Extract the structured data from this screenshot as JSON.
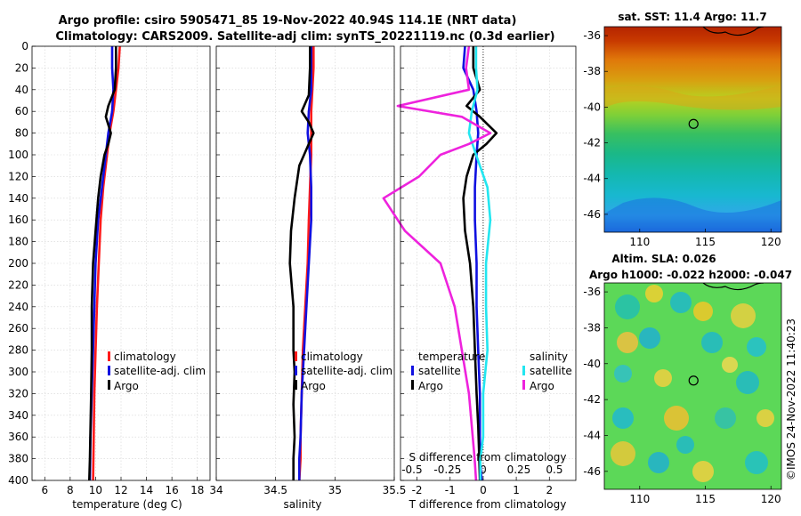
{
  "title_line1": "Argo profile: csiro 5905471_85 19-Nov-2022 40.94S 114.1E (NRT data)",
  "title_line2": "Climatology: CARS2009. Satellite-adj clim: synTS_20221119.nc (0.3d earlier)",
  "depth_ticks": [
    "0",
    "20",
    "40",
    "60",
    "80",
    "100",
    "120",
    "140",
    "160",
    "180",
    "200",
    "220",
    "240",
    "260",
    "280",
    "300",
    "320",
    "340",
    "360",
    "380",
    "400"
  ],
  "footer_text": "©IMOS 24-Nov-2022 11:40:23",
  "colors": {
    "red": "#ff1a1a",
    "blue": "#1010e0",
    "black": "#000000",
    "cyan": "#22e6f0",
    "magenta": "#ee22dd"
  },
  "chart_data": [
    {
      "type": "line",
      "panel": "temperature",
      "xlabel": "temperature (deg C)",
      "ylabel": "",
      "xlim": [
        5,
        19
      ],
      "ylim": [
        400,
        0
      ],
      "xticks": [
        "6",
        "8",
        "10",
        "12",
        "14",
        "16",
        "18"
      ],
      "xtick_values": [
        6,
        8,
        10,
        12,
        14,
        16,
        18
      ],
      "legend": [
        "climatology",
        "satellite-adj. clim",
        "Argo"
      ],
      "series": [
        {
          "name": "climatology",
          "color": "red",
          "x": [
            11.9,
            11.8,
            11.6,
            11.4,
            11.1,
            10.9,
            10.6,
            10.4,
            10.25,
            10.1,
            10.0,
            9.9,
            9.85,
            9.8
          ],
          "y": [
            0,
            20,
            40,
            60,
            80,
            100,
            130,
            160,
            200,
            240,
            280,
            320,
            360,
            400
          ]
        },
        {
          "name": "satellite-adj. clim",
          "color": "blue",
          "x": [
            11.3,
            11.3,
            11.4,
            11.3,
            11.0,
            10.8,
            10.5,
            10.2,
            10.0,
            9.9,
            9.8,
            9.7,
            9.6,
            9.55
          ],
          "y": [
            0,
            20,
            40,
            60,
            80,
            100,
            130,
            160,
            200,
            240,
            280,
            320,
            360,
            400
          ]
        },
        {
          "name": "Argo",
          "color": "black",
          "x": [
            11.6,
            11.6,
            11.5,
            11.0,
            10.8,
            11.2,
            11.0,
            10.7,
            10.4,
            10.2,
            10.0,
            9.8,
            9.7,
            9.7,
            9.65,
            9.6,
            9.55,
            9.5
          ],
          "y": [
            0,
            20,
            40,
            55,
            65,
            80,
            90,
            100,
            120,
            140,
            170,
            200,
            240,
            280,
            320,
            350,
            380,
            400
          ]
        }
      ]
    },
    {
      "type": "line",
      "panel": "salinity",
      "xlabel": "salinity",
      "ylabel": "",
      "xlim": [
        34,
        35.5
      ],
      "ylim": [
        400,
        0
      ],
      "xticks": [
        "34",
        "34.5",
        "35",
        "35.5"
      ],
      "xtick_values": [
        34,
        34.5,
        35,
        35.5
      ],
      "legend": [
        "climatology",
        "satellite-adj. clim",
        "Argo"
      ],
      "series": [
        {
          "name": "climatology",
          "color": "red",
          "x": [
            34.82,
            34.82,
            34.81,
            34.8,
            34.8,
            34.8,
            34.79,
            34.78,
            34.77,
            34.75,
            34.73,
            34.72,
            34.71,
            34.71,
            34.7
          ],
          "y": [
            0,
            20,
            40,
            60,
            80,
            100,
            130,
            160,
            200,
            240,
            280,
            320,
            360,
            380,
            400
          ]
        },
        {
          "name": "satellite-adj. clim",
          "color": "blue",
          "x": [
            34.8,
            34.8,
            34.8,
            34.78,
            34.77,
            34.79,
            34.8,
            34.8,
            34.78,
            34.76,
            34.74,
            34.72,
            34.71,
            34.7,
            34.7
          ],
          "y": [
            0,
            20,
            40,
            60,
            80,
            100,
            130,
            160,
            200,
            240,
            280,
            320,
            360,
            380,
            400
          ]
        },
        {
          "name": "Argo",
          "color": "black",
          "x": [
            34.79,
            34.79,
            34.78,
            34.72,
            34.78,
            34.82,
            34.76,
            34.7,
            34.66,
            34.63,
            34.62,
            34.65,
            34.65,
            34.66,
            34.65,
            34.66,
            34.65,
            34.65
          ],
          "y": [
            0,
            20,
            45,
            60,
            70,
            80,
            95,
            110,
            140,
            170,
            200,
            240,
            280,
            300,
            330,
            360,
            380,
            400
          ]
        }
      ]
    },
    {
      "type": "line",
      "panel": "difference",
      "xlabel": "T difference from climatology",
      "xlabel_top": "S difference from climatology",
      "ylabel": "",
      "xlim": [
        -2.5,
        2.8
      ],
      "ylim": [
        400,
        0
      ],
      "xticks": [
        "-2",
        "-1",
        "0",
        "1",
        "2"
      ],
      "xtick_values": [
        -2,
        -1,
        0,
        1,
        2
      ],
      "s_ticks": [
        "-0.5",
        "-0.25",
        "0",
        "0.25",
        "0.5"
      ],
      "s_tick_values": [
        -0.5,
        -0.25,
        0,
        0.25,
        0.5
      ],
      "legend_temperature_title": "temperature",
      "legend_salinity_title": "salinity",
      "legend_temperature": [
        "satellite",
        "Argo"
      ],
      "legend_salinity": [
        "satellite",
        "Argo"
      ],
      "series": [
        {
          "name": "temperature satellite",
          "color": "blue",
          "x": [
            -0.55,
            -0.6,
            -0.3,
            -0.2,
            -0.15,
            -0.2,
            -0.25,
            -0.25,
            -0.2,
            -0.2,
            -0.15,
            -0.1,
            -0.1,
            -0.1,
            -0.05
          ],
          "y": [
            0,
            20,
            40,
            60,
            80,
            100,
            130,
            160,
            200,
            240,
            280,
            320,
            360,
            380,
            400
          ]
        },
        {
          "name": "temperature Argo",
          "color": "black",
          "x": [
            -0.3,
            -0.3,
            -0.1,
            -0.5,
            -0.1,
            0.4,
            0.1,
            -0.3,
            -0.5,
            -0.6,
            -0.55,
            -0.4,
            -0.3,
            -0.25,
            -0.2,
            -0.15,
            -0.12,
            -0.1
          ],
          "y": [
            0,
            20,
            40,
            55,
            65,
            80,
            90,
            100,
            120,
            140,
            170,
            200,
            240,
            280,
            320,
            350,
            380,
            400
          ]
        },
        {
          "name": "salinity satellite",
          "color": "cyan",
          "x": [
            -0.05,
            -0.05,
            -0.04,
            -0.08,
            -0.1,
            -0.05,
            0.03,
            0.05,
            0.02,
            0.02,
            0.03,
            0.0,
            0.0,
            -0.02,
            -0.02
          ],
          "y": [
            0,
            20,
            40,
            60,
            80,
            100,
            130,
            160,
            200,
            240,
            280,
            320,
            360,
            380,
            400
          ]
        },
        {
          "name": "salinity Argo",
          "color": "magenta",
          "x": [
            -0.1,
            -0.12,
            -0.1,
            -0.6,
            -0.15,
            0.05,
            -0.1,
            -0.3,
            -0.45,
            -0.7,
            -0.55,
            -0.3,
            -0.2,
            -0.15,
            -0.1,
            -0.08,
            -0.06,
            -0.05
          ],
          "y": [
            0,
            20,
            40,
            55,
            65,
            80,
            90,
            100,
            120,
            140,
            170,
            200,
            240,
            280,
            320,
            350,
            380,
            400
          ]
        }
      ]
    },
    {
      "type": "heatmap",
      "panel": "sst_map",
      "title": "sat. SST: 11.4 Argo: 11.7",
      "xticks": [
        "110",
        "115",
        "120"
      ],
      "xtick_values": [
        110,
        115,
        120
      ],
      "yticks": [
        "-36",
        "-38",
        "-40",
        "-42",
        "-44",
        "-46"
      ],
      "ytick_values": [
        -36,
        -38,
        -40,
        -42,
        -44,
        -46
      ],
      "xlim": [
        107.3,
        120.8
      ],
      "ylim": [
        -47,
        -35.5
      ],
      "argo_position": [
        114.1,
        -40.94
      ]
    },
    {
      "type": "heatmap",
      "panel": "sla_map",
      "title_line1": "Altim. SLA: 0.026",
      "title_line2": "Argo h1000: -0.022 h2000: -0.047",
      "xticks": [
        "110",
        "115",
        "120"
      ],
      "xtick_values": [
        110,
        115,
        120
      ],
      "yticks": [
        "-36",
        "-38",
        "-40",
        "-42",
        "-44",
        "-46"
      ],
      "ytick_values": [
        -36,
        -38,
        -40,
        -42,
        -44,
        -46
      ],
      "xlim": [
        107.3,
        120.8
      ],
      "ylim": [
        -47,
        -35.5
      ],
      "argo_position": [
        114.1,
        -40.94
      ]
    }
  ]
}
